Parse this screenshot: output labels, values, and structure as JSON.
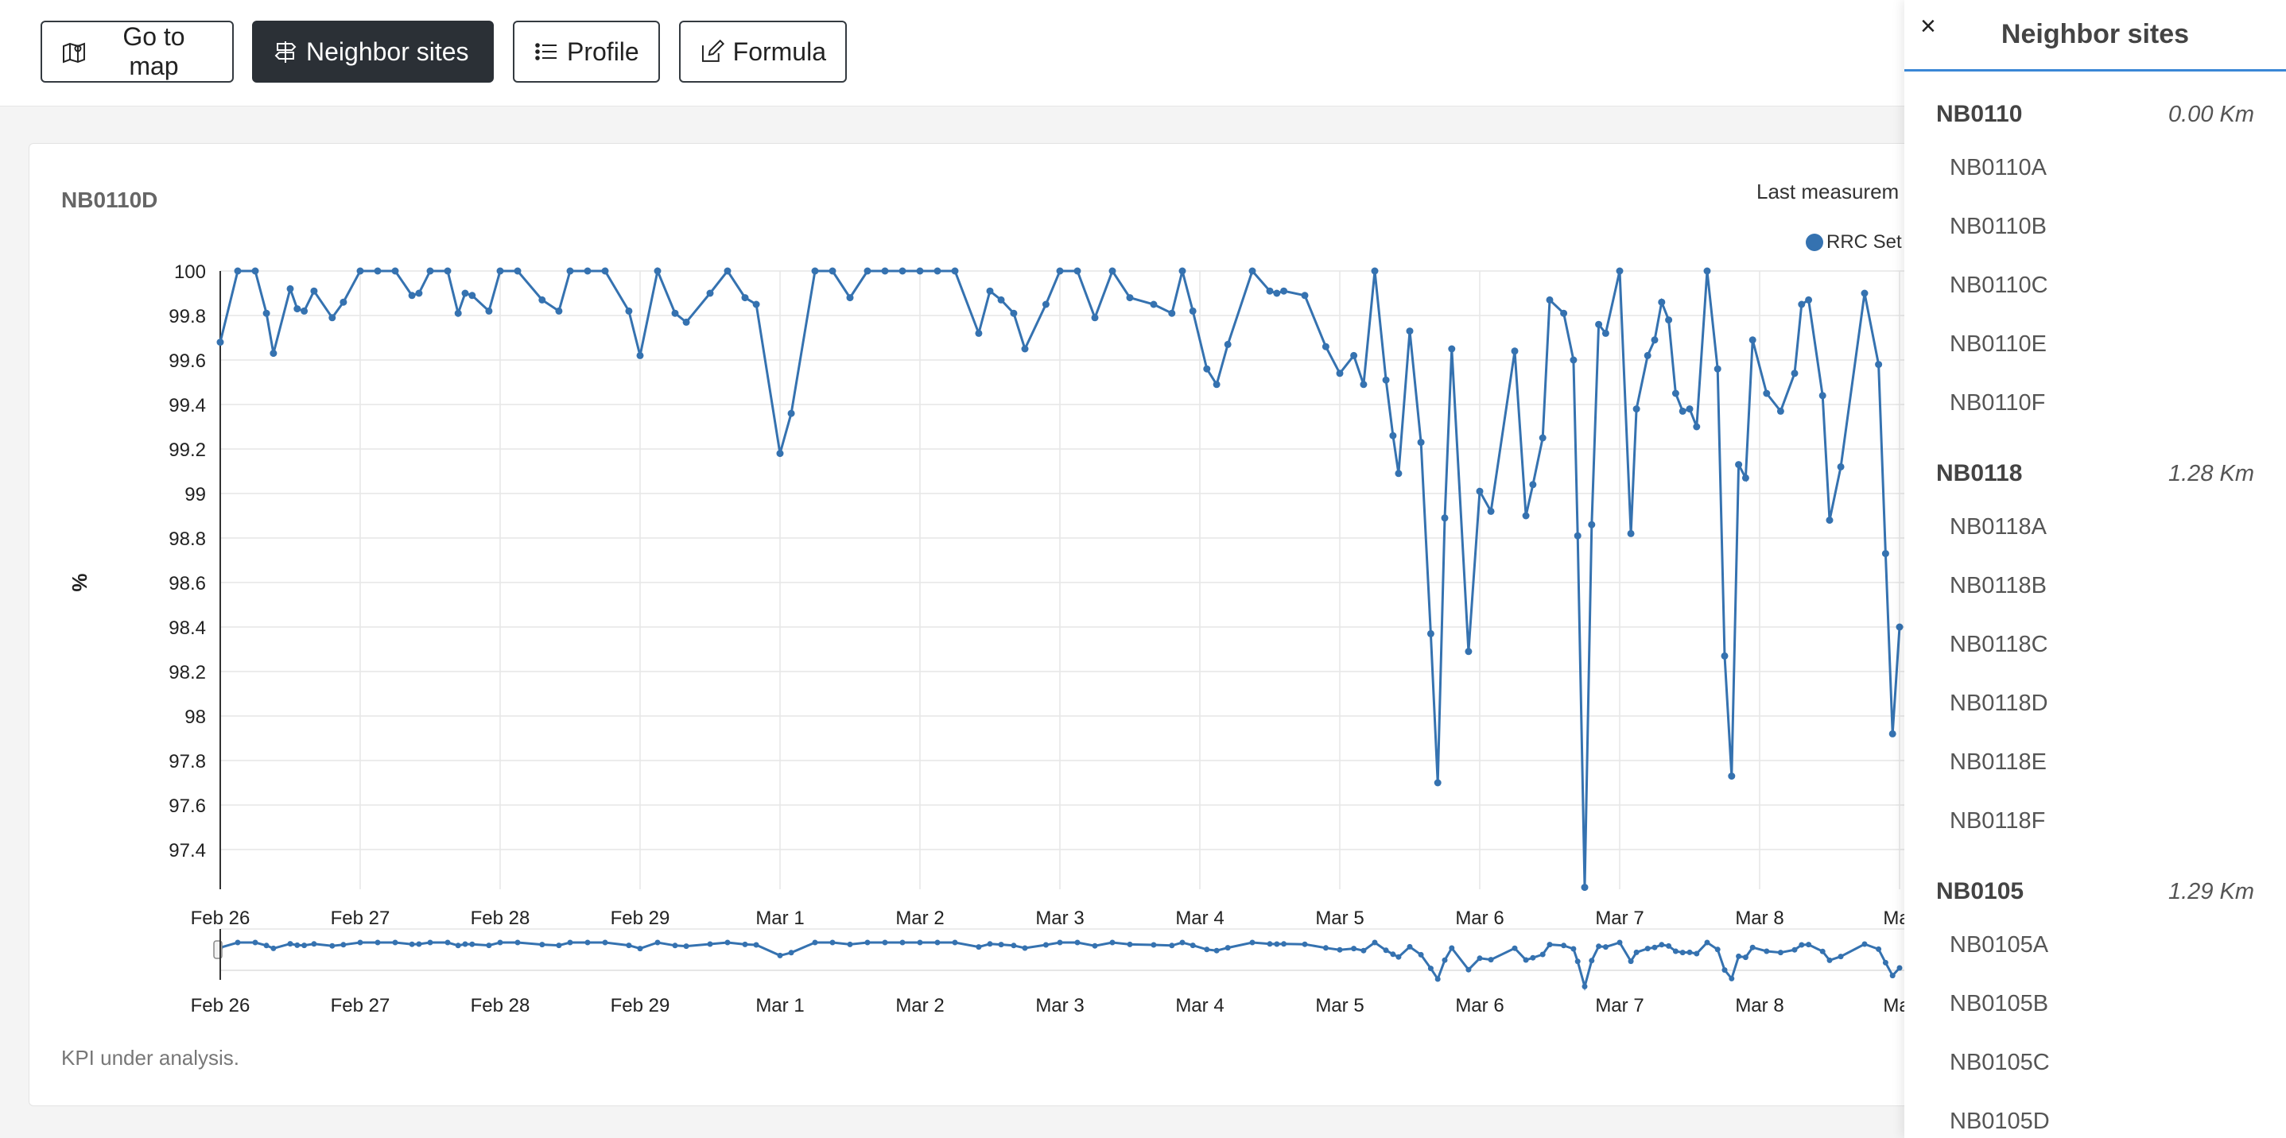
{
  "toolbar": {
    "go_to_map": "Go to map",
    "neighbor_sites": "Neighbor sites",
    "profile": "Profile",
    "formula": "Formula"
  },
  "card": {
    "title": "NB0110D",
    "last_measurement": "Last measurem",
    "footer": "KPI under analysis."
  },
  "chart_data": {
    "type": "line",
    "ylabel": "%",
    "ylim": [
      97.23,
      100
    ],
    "yticks": [
      "100",
      "99.8",
      "99.6",
      "99.4",
      "99.2",
      "99",
      "98.8",
      "98.6",
      "98.4",
      "98.2",
      "98",
      "97.8",
      "97.6",
      "97.4"
    ],
    "xticks": [
      "Feb 26",
      "Feb 27",
      "Feb 28",
      "Feb 29",
      "Mar 1",
      "Mar 2",
      "Mar 3",
      "Mar 4",
      "Mar 5",
      "Mar 6",
      "Mar 7",
      "Mar 8",
      "Mar"
    ],
    "xrange_days": [
      0,
      12.02
    ],
    "legend_label": "RRC Set",
    "color": "#3572b0",
    "navigator_xticks": [
      "Feb 26",
      "Feb 27",
      "Feb 28",
      "Feb 29",
      "Mar 1",
      "Mar 2",
      "Mar 3",
      "Mar 4",
      "Mar 5",
      "Mar 6",
      "Mar 7",
      "Mar 8",
      "Mar"
    ],
    "dips": [
      [
        0.0,
        99.68
      ],
      [
        0.33,
        99.81
      ],
      [
        0.38,
        99.63
      ],
      [
        0.5,
        99.92
      ],
      [
        0.55,
        99.83
      ],
      [
        0.6,
        99.82
      ],
      [
        0.67,
        99.91
      ],
      [
        0.8,
        99.79
      ],
      [
        0.88,
        99.86
      ],
      [
        1.37,
        99.89
      ],
      [
        1.42,
        99.9
      ],
      [
        1.7,
        99.81
      ],
      [
        1.75,
        99.9
      ],
      [
        1.8,
        99.89
      ],
      [
        1.92,
        99.82
      ],
      [
        2.3,
        99.87
      ],
      [
        2.42,
        99.82
      ],
      [
        2.92,
        99.82
      ],
      [
        3.0,
        99.62
      ],
      [
        3.25,
        99.81
      ],
      [
        3.33,
        99.77
      ],
      [
        3.5,
        99.9
      ],
      [
        3.75,
        99.88
      ],
      [
        3.83,
        99.85
      ],
      [
        4.0,
        99.18
      ],
      [
        4.08,
        99.36
      ],
      [
        4.5,
        99.88
      ],
      [
        5.42,
        99.72
      ],
      [
        5.5,
        99.91
      ],
      [
        5.58,
        99.87
      ],
      [
        5.67,
        99.81
      ],
      [
        5.75,
        99.65
      ],
      [
        5.9,
        99.85
      ],
      [
        6.25,
        99.79
      ],
      [
        6.5,
        99.88
      ],
      [
        6.67,
        99.85
      ],
      [
        6.8,
        99.81
      ],
      [
        6.95,
        99.82
      ],
      [
        7.05,
        99.56
      ],
      [
        7.12,
        99.49
      ],
      [
        7.2,
        99.67
      ],
      [
        7.5,
        99.91
      ],
      [
        7.55,
        99.9
      ],
      [
        7.6,
        99.91
      ],
      [
        7.75,
        99.89
      ],
      [
        7.9,
        99.66
      ],
      [
        8.0,
        99.54
      ],
      [
        8.1,
        99.62
      ],
      [
        8.17,
        99.49
      ],
      [
        8.33,
        99.51
      ],
      [
        8.38,
        99.26
      ],
      [
        8.42,
        99.09
      ],
      [
        8.5,
        99.73
      ],
      [
        8.58,
        99.23
      ],
      [
        8.65,
        98.37
      ],
      [
        8.7,
        97.7
      ],
      [
        8.75,
        98.89
      ],
      [
        8.8,
        99.65
      ],
      [
        8.92,
        98.29
      ],
      [
        9.0,
        99.01
      ],
      [
        9.08,
        98.92
      ],
      [
        9.25,
        99.64
      ],
      [
        9.33,
        98.9
      ],
      [
        9.38,
        99.04
      ],
      [
        9.45,
        99.25
      ],
      [
        9.5,
        99.87
      ],
      [
        9.6,
        99.81
      ],
      [
        9.67,
        99.6
      ],
      [
        9.7,
        98.81
      ],
      [
        9.75,
        97.23
      ],
      [
        9.8,
        98.86
      ],
      [
        9.85,
        99.76
      ],
      [
        9.9,
        99.72
      ],
      [
        10.08,
        98.82
      ],
      [
        10.12,
        99.38
      ],
      [
        10.2,
        99.62
      ],
      [
        10.25,
        99.69
      ],
      [
        10.3,
        99.86
      ],
      [
        10.35,
        99.78
      ],
      [
        10.4,
        99.45
      ],
      [
        10.45,
        99.37
      ],
      [
        10.5,
        99.38
      ],
      [
        10.55,
        99.3
      ],
      [
        10.7,
        99.56
      ],
      [
        10.75,
        98.27
      ],
      [
        10.8,
        97.73
      ],
      [
        10.85,
        99.13
      ],
      [
        10.9,
        99.07
      ],
      [
        10.95,
        99.69
      ],
      [
        11.05,
        99.45
      ],
      [
        11.15,
        99.37
      ],
      [
        11.25,
        99.54
      ],
      [
        11.3,
        99.85
      ],
      [
        11.35,
        99.87
      ],
      [
        11.45,
        99.44
      ],
      [
        11.5,
        98.88
      ],
      [
        11.58,
        99.12
      ],
      [
        11.75,
        99.9
      ],
      [
        11.85,
        99.58
      ],
      [
        11.9,
        98.73
      ],
      [
        11.95,
        97.92
      ],
      [
        12.0,
        98.4
      ]
    ]
  },
  "panel": {
    "close": "×",
    "title": "Neighbor sites",
    "sites": [
      {
        "name": "NB0110",
        "distance": "0.00 Km",
        "cells": [
          "NB0110A",
          "NB0110B",
          "NB0110C",
          "NB0110E",
          "NB0110F"
        ]
      },
      {
        "name": "NB0118",
        "distance": "1.28 Km",
        "cells": [
          "NB0118A",
          "NB0118B",
          "NB0118C",
          "NB0118D",
          "NB0118E",
          "NB0118F"
        ]
      },
      {
        "name": "NB0105",
        "distance": "1.29 Km",
        "cells": [
          "NB0105A",
          "NB0105B",
          "NB0105C",
          "NB0105D"
        ]
      }
    ]
  }
}
